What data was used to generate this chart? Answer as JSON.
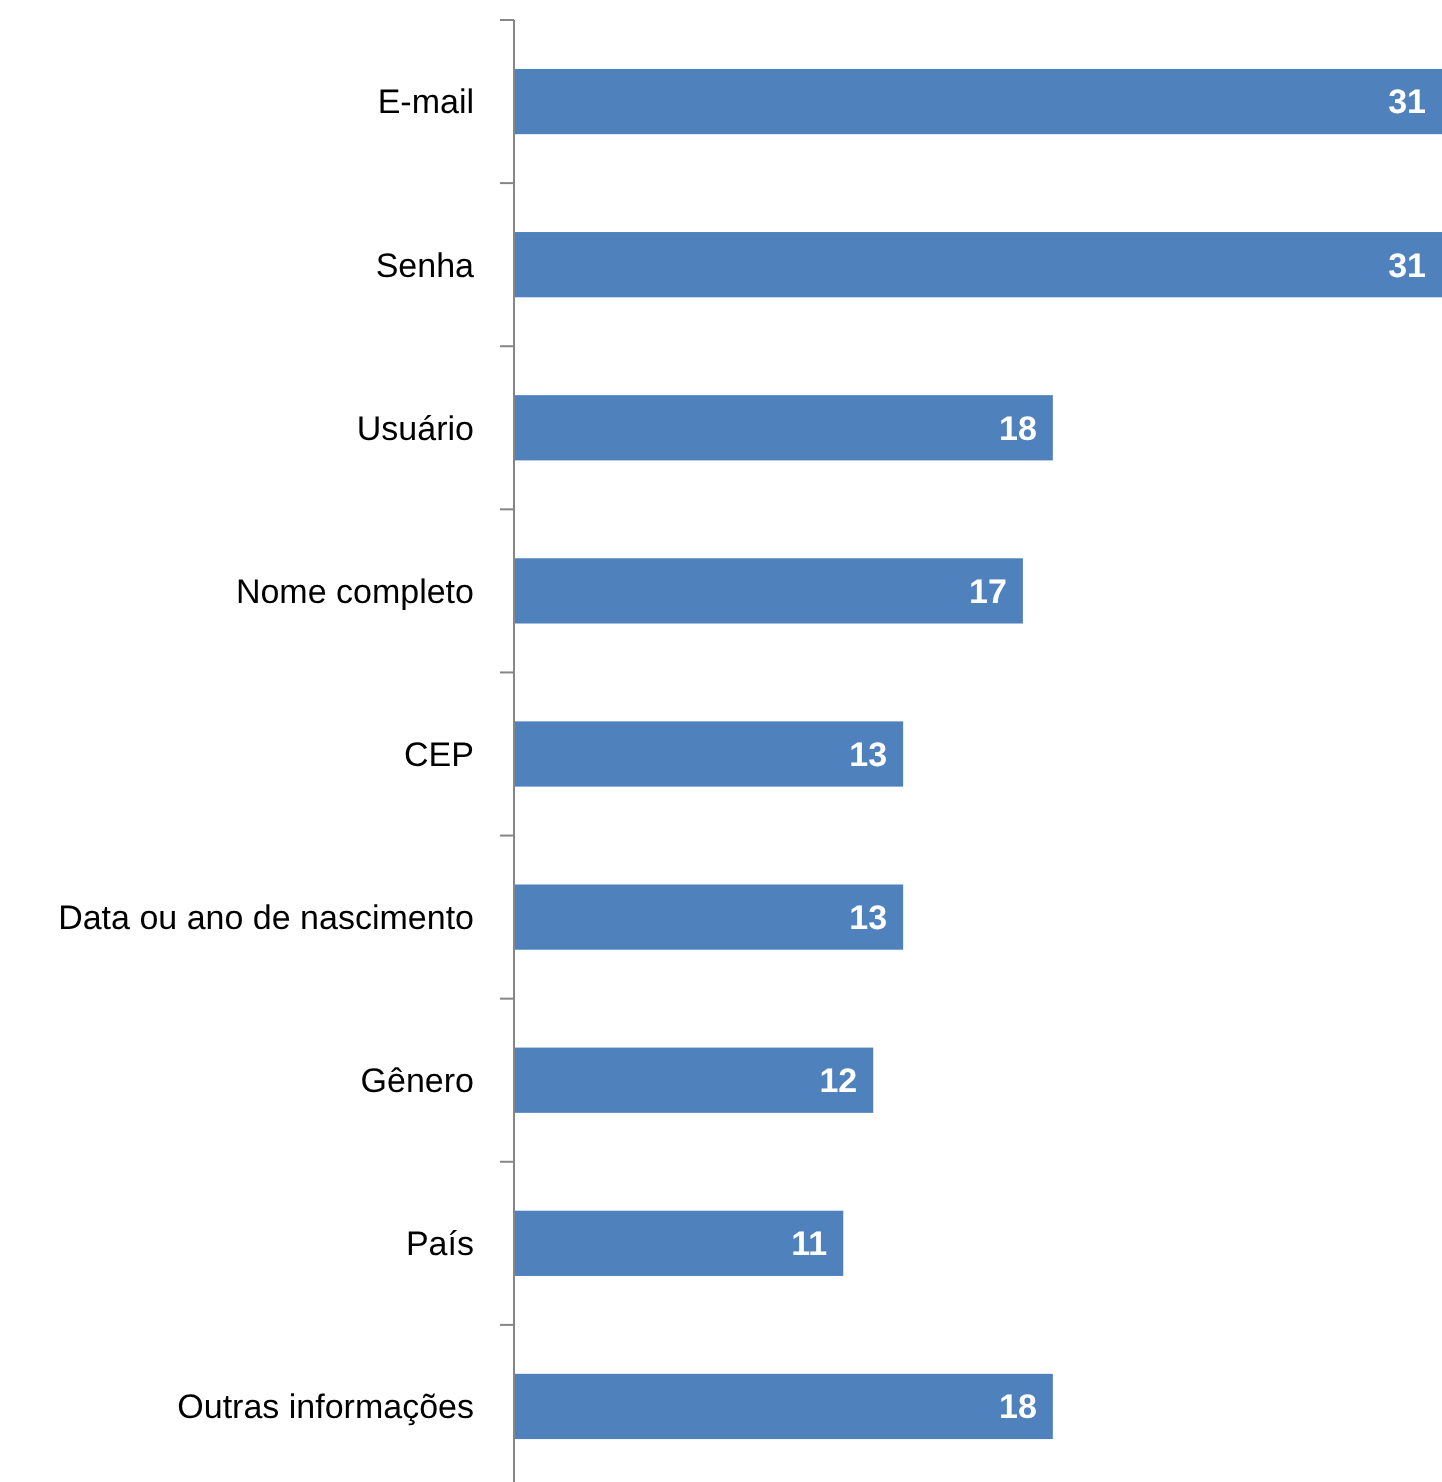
{
  "chart_data": {
    "type": "bar",
    "orientation": "horizontal",
    "categories": [
      "E-mail",
      "Senha",
      "Usuário",
      "Nome completo",
      "CEP",
      "Data ou ano de nascimento",
      "Gênero",
      "País",
      "Outras informações"
    ],
    "values": [
      31,
      31,
      18,
      17,
      13,
      13,
      12,
      11,
      18
    ],
    "color": "#4f81bd",
    "data_labels": true
  }
}
